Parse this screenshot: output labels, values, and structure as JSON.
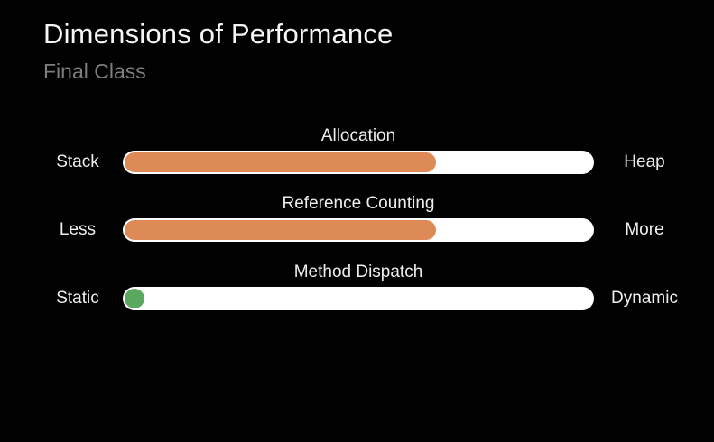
{
  "slide": {
    "title": "Dimensions of Performance",
    "subtitle": "Final Class"
  },
  "colors": {
    "background": "#010101",
    "track_white": "#ffffff",
    "orange_fill": "#dd8a57",
    "green_dot": "#5aa85e",
    "title_text": "#f5f5f5",
    "subtitle_text": "#7e7e7e",
    "label_text": "#eeeeee"
  },
  "chart_data": {
    "type": "bar",
    "orientation": "horizontal",
    "title": "Dimensions of Performance",
    "subtitle": "Final Class",
    "value_range": [
      0,
      1
    ],
    "grid": false,
    "legend": false,
    "series": [
      {
        "name": "Allocation",
        "left_label": "Stack",
        "right_label": "Heap",
        "value_fraction": 0.66,
        "indicator": "bar",
        "color": "#dd8a57"
      },
      {
        "name": "Reference Counting",
        "left_label": "Less",
        "right_label": "More",
        "value_fraction": 0.66,
        "indicator": "bar",
        "color": "#dd8a57"
      },
      {
        "name": "Method Dispatch",
        "left_label": "Static",
        "right_label": "Dynamic",
        "value_fraction": 0.0,
        "indicator": "dot",
        "color": "#5aa85e"
      }
    ]
  }
}
